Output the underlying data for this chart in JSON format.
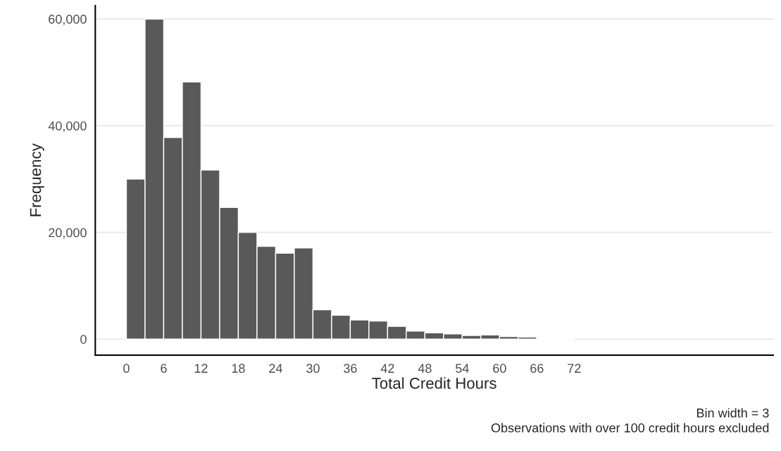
{
  "chart_data": {
    "type": "histogram",
    "xlabel": "Total Credit Hours",
    "ylabel": "Frequency",
    "bins": [
      0,
      3,
      6,
      9,
      12,
      15,
      18,
      21,
      24,
      27,
      30,
      33,
      36,
      39,
      42,
      45,
      48,
      51,
      54,
      57,
      60,
      63,
      66,
      69,
      72,
      75,
      78,
      81,
      84,
      87,
      90,
      93,
      96,
      99
    ],
    "values": [
      30000,
      60000,
      37800,
      48200,
      31700,
      24700,
      20000,
      17400,
      16100,
      17100,
      5500,
      4500,
      3600,
      3400,
      2400,
      1500,
      1200,
      1000,
      700,
      800,
      500,
      400,
      200,
      100,
      0,
      0,
      0,
      0,
      0,
      0,
      0,
      0,
      0
    ],
    "color": "#595959",
    "xlim": [
      -5,
      104
    ],
    "ylim": [
      -3000,
      62500
    ],
    "xticks": [
      0,
      6,
      12,
      18,
      24,
      30,
      36,
      42,
      48,
      54,
      60,
      66,
      72
    ],
    "yticks": [
      {
        "value": 0,
        "label": "0"
      },
      {
        "value": 20000,
        "label": "20,000"
      },
      {
        "value": 40000,
        "label": "40,000"
      },
      {
        "value": 60000,
        "label": "60,000"
      }
    ],
    "grid": "y",
    "annotations": [
      "Bin width = 3",
      "Observations with over 100 credit hours excluded"
    ]
  }
}
